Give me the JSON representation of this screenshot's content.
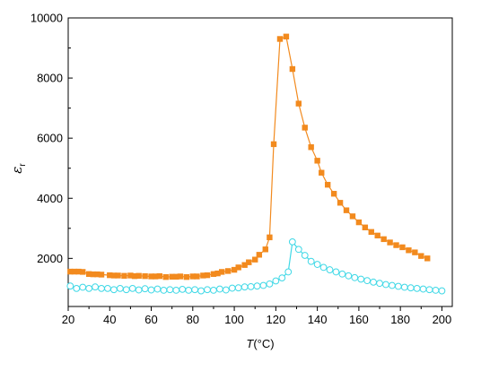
{
  "chart_data": {
    "type": "line",
    "xlim": [
      20,
      205
    ],
    "ylim": [
      400,
      10000
    ],
    "x_ticks": [
      20,
      40,
      60,
      80,
      100,
      120,
      140,
      160,
      180,
      200
    ],
    "y_ticks": [
      2000,
      4000,
      6000,
      8000,
      10000
    ],
    "xlabel": {
      "symbol": "T",
      "unit": "(°C)"
    },
    "ylabel": {
      "symbol": "ε",
      "subscript": "r"
    },
    "grid": false,
    "legend": "none",
    "series": [
      {
        "color": "#F28A1E",
        "marker": "filled-square",
        "x": [
          21,
          23,
          25,
          27,
          30,
          32,
          34,
          36,
          40,
          42,
          44,
          47,
          50,
          52,
          54,
          57,
          60,
          62,
          64,
          67,
          70,
          72,
          74,
          77,
          80,
          82,
          85,
          87,
          90,
          92,
          94,
          97,
          100,
          102,
          105,
          107,
          110,
          112,
          115,
          117,
          119,
          122,
          125,
          128,
          131,
          134,
          137,
          140,
          142,
          145,
          148,
          151,
          154,
          157,
          160,
          163,
          166,
          169,
          172,
          175,
          178,
          181,
          184,
          187,
          190,
          193
        ],
        "y": [
          1560,
          1560,
          1560,
          1550,
          1480,
          1470,
          1470,
          1460,
          1440,
          1430,
          1430,
          1420,
          1430,
          1410,
          1420,
          1410,
          1400,
          1400,
          1410,
          1380,
          1390,
          1390,
          1400,
          1380,
          1400,
          1400,
          1430,
          1440,
          1480,
          1500,
          1550,
          1580,
          1620,
          1700,
          1780,
          1870,
          1960,
          2120,
          2300,
          2700,
          5800,
          9300,
          9380,
          8300,
          7150,
          6350,
          5700,
          5250,
          4850,
          4450,
          4150,
          3850,
          3600,
          3400,
          3200,
          3030,
          2880,
          2760,
          2640,
          2530,
          2440,
          2370,
          2270,
          2200,
          2080,
          2000
        ]
      },
      {
        "color": "#3FD8E6",
        "marker": "open-circle",
        "x": [
          21,
          24,
          27,
          30,
          33,
          36,
          39,
          42,
          45,
          48,
          51,
          54,
          57,
          60,
          63,
          66,
          69,
          72,
          75,
          78,
          81,
          84,
          87,
          90,
          93,
          96,
          99,
          102,
          105,
          108,
          111,
          114,
          117,
          120,
          123,
          126,
          128,
          131,
          134,
          137,
          140,
          143,
          146,
          149,
          152,
          155,
          158,
          161,
          164,
          167,
          170,
          173,
          176,
          179,
          182,
          185,
          188,
          191,
          194,
          197,
          200
        ],
        "y": [
          1080,
          1000,
          1040,
          1000,
          1050,
          1000,
          1000,
          960,
          1000,
          960,
          1000,
          950,
          990,
          950,
          980,
          940,
          960,
          940,
          970,
          940,
          960,
          920,
          960,
          940,
          980,
          950,
          1010,
          1020,
          1050,
          1060,
          1080,
          1100,
          1150,
          1250,
          1350,
          1550,
          2550,
          2300,
          2100,
          1900,
          1800,
          1700,
          1620,
          1550,
          1480,
          1420,
          1360,
          1310,
          1260,
          1210,
          1170,
          1130,
          1100,
          1070,
          1040,
          1020,
          1000,
          980,
          960,
          940,
          920
        ]
      }
    ]
  }
}
